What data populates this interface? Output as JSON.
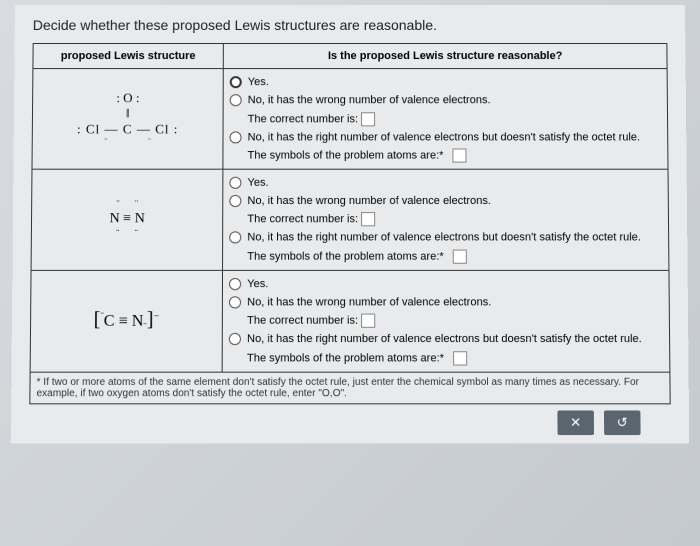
{
  "prompt": "Decide whether these proposed Lewis structures are reasonable.",
  "headers": {
    "left": "proposed Lewis structure",
    "right": "Is the proposed Lewis structure reasonable?"
  },
  "options": {
    "yes": "Yes.",
    "wrong_count": "No, it has the wrong number of valence electrons.",
    "correct_is": "The correct number is:",
    "octet": "No, it has the right number of valence electrons but doesn't satisfy the octet rule.",
    "symbols": "The symbols of the problem atoms are:*"
  },
  "rows": [
    {
      "id": 0
    },
    {
      "id": 1
    },
    {
      "id": 2
    }
  ],
  "footnote": "* If two or more atoms of the same element don't satisfy the octet rule, just enter the chemical symbol as many times as necessary. For example, if two oxygen atoms don't satisfy the octet rule, enter \"O,O\".",
  "toolbar": {
    "close": "✕",
    "reset": "↺"
  },
  "colors": {
    "border": "#333333",
    "page_bg": "#e8eaec",
    "toolbar_bg": "#5a6570"
  }
}
